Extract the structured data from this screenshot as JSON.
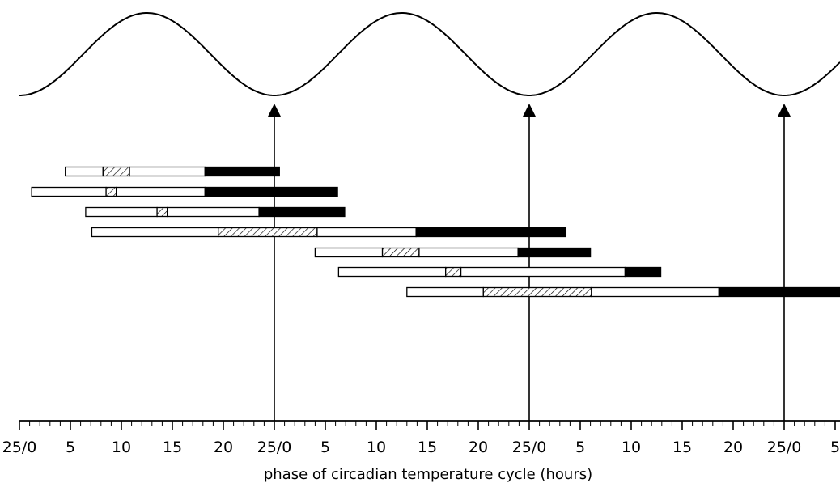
{
  "chart_data": {
    "type": "bar",
    "subtype": "floating-horizontal-bars",
    "title": "",
    "xlabel": "phase of circadian temperature cycle (hours)",
    "ylabel": "",
    "x_axis": {
      "range": [
        0,
        80
      ],
      "major_ticks_every": 5,
      "minor_ticks_every": 1,
      "tick_labels": [
        "25/0",
        "5",
        "10",
        "15",
        "20",
        "25/0",
        "5",
        "10",
        "15",
        "20",
        "25/0",
        "5",
        "10",
        "15",
        "20",
        "25/0",
        "5"
      ]
    },
    "temperature_curve": {
      "shape": "sinusoid",
      "period_hours": 25,
      "minima_at_hours": [
        0,
        25,
        50,
        75
      ]
    },
    "arrows_at_hours": [
      25,
      50,
      75
    ],
    "legend": "none",
    "grid": false,
    "series": [
      {
        "values": [
          {
            "wake": [
              4.5,
              8.2
            ],
            "hatched": [
              8.2,
              10.8
            ],
            "wake_after": [
              10.8,
              18.2
            ],
            "sleep": [
              18.2,
              25.5
            ]
          }
        ]
      },
      {
        "values": [
          {
            "wake": [
              1.2,
              8.5
            ],
            "hatched": [
              8.5,
              9.5
            ],
            "wake_after": [
              9.5,
              18.2
            ],
            "sleep": [
              18.2,
              31.2
            ]
          }
        ]
      },
      {
        "values": [
          {
            "wake": [
              6.5,
              13.5
            ],
            "hatched": [
              13.5,
              14.5
            ],
            "wake_after": [
              14.5,
              23.5
            ],
            "sleep": [
              23.5,
              31.9
            ]
          }
        ]
      },
      {
        "values": [
          {
            "wake": [
              7.1,
              19.5
            ],
            "hatched": [
              19.5,
              29.2
            ],
            "wake_after": [
              29.2,
              38.9
            ],
            "sleep": [
              38.9,
              53.6
            ]
          }
        ]
      },
      {
        "values": [
          {
            "wake": [
              29.0,
              35.6
            ],
            "hatched": [
              35.6,
              39.2
            ],
            "wake_after": [
              39.2,
              48.9
            ],
            "sleep": [
              48.9,
              56.0
            ]
          }
        ]
      },
      {
        "values": [
          {
            "wake": [
              31.3,
              41.8
            ],
            "hatched": [
              41.8,
              43.3
            ],
            "wake_after": [
              43.3,
              59.4
            ],
            "sleep": [
              59.4,
              62.9
            ]
          }
        ]
      },
      {
        "values": [
          {
            "wake": [
              38.0,
              45.5
            ],
            "hatched": [
              45.5,
              56.1
            ],
            "wake_after": [
              56.1,
              68.6
            ],
            "sleep": [
              68.6,
              81.0
            ]
          }
        ]
      }
    ]
  }
}
